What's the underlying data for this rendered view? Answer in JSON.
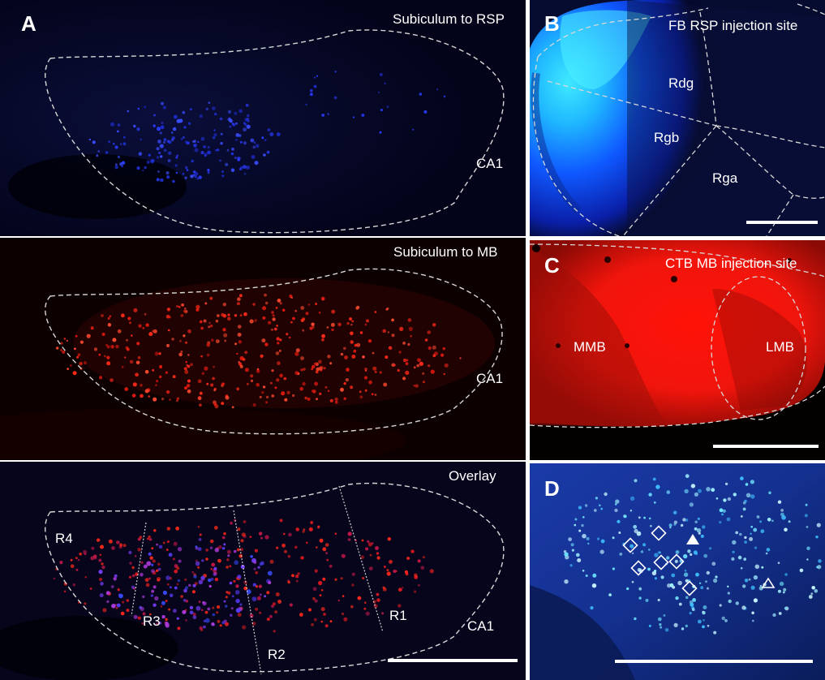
{
  "panel_a": {
    "letter": "A",
    "top_title": "Subiculum to RSP",
    "middle_title": "Subiculum to MB",
    "bottom_title": "Overlay",
    "region_top": "CA1",
    "region_middle": "CA1",
    "region_bottom": "CA1",
    "r1": "R1",
    "r2": "R2",
    "r3": "R3",
    "r4": "R4"
  },
  "panel_b": {
    "letter": "B",
    "title": "FB RSP injection site",
    "rdg": "Rdg",
    "rgb": "Rgb",
    "rga": "Rga"
  },
  "panel_c": {
    "letter": "C",
    "title": "CTB MB injection site",
    "mmb": "MMB",
    "lmb": "LMB"
  },
  "panel_d": {
    "letter": "D"
  },
  "colors": {
    "fb_blue": "#2b3cff",
    "ctb_red": "#ff1a10",
    "cyan": "#28d8ff",
    "background_dark": "#05051a"
  }
}
